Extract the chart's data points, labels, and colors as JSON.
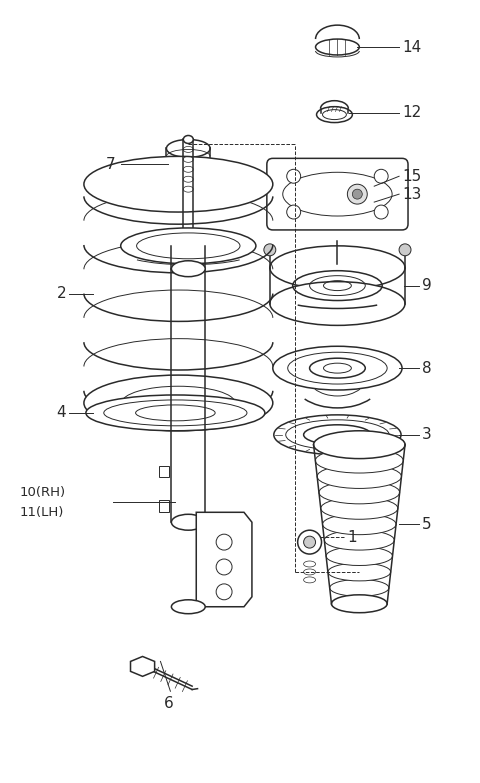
{
  "bg_color": "#ffffff",
  "line_color": "#2a2a2a",
  "fig_width": 4.8,
  "fig_height": 7.83,
  "dpi": 100
}
